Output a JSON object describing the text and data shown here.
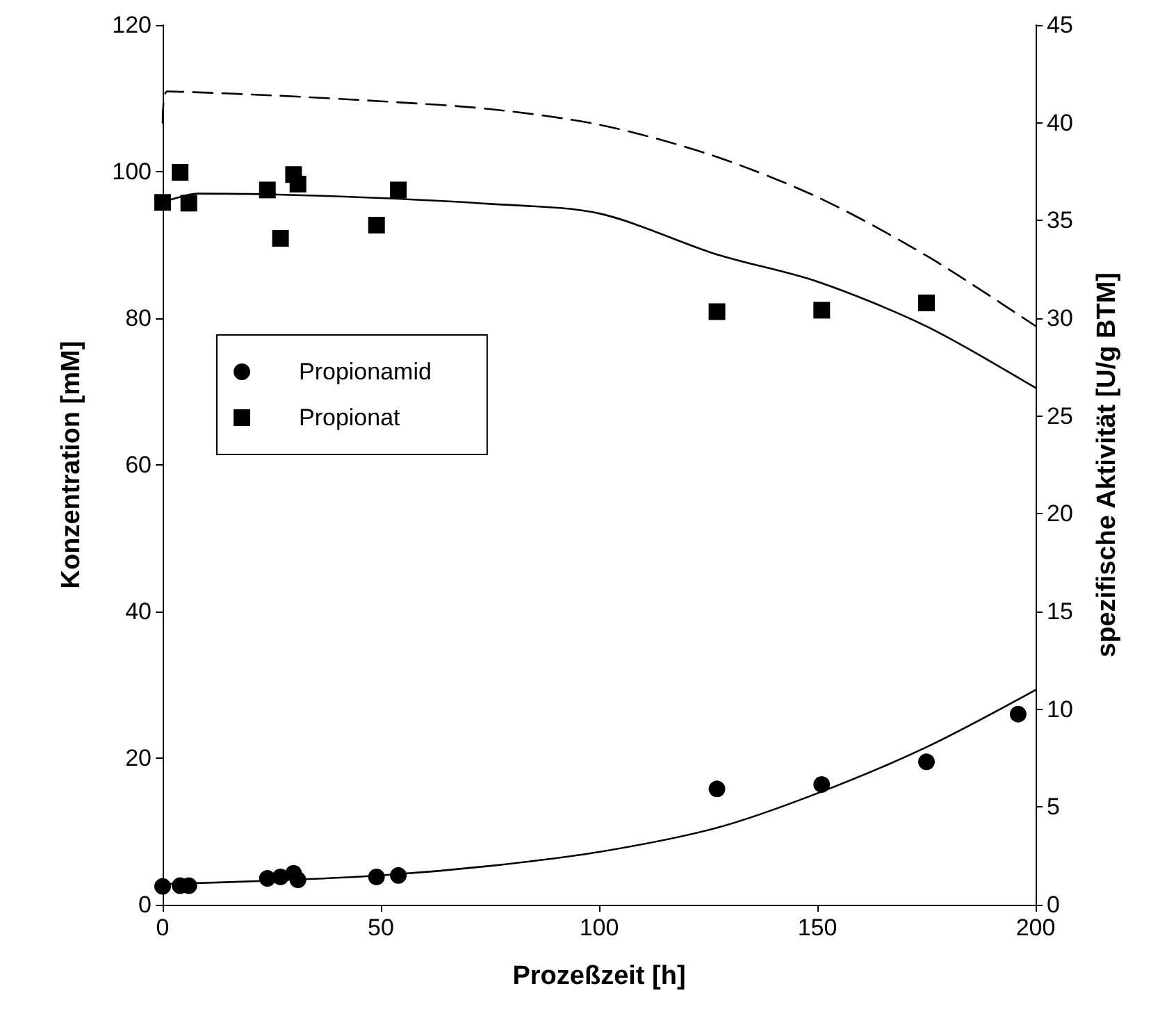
{
  "chart_data": {
    "type": "scatter",
    "xlabel": "Prozeßzeit [h]",
    "ylabel": "Konzentration [mM]",
    "y2label": "spezifische Aktivität [U/g BTM]",
    "xlim": [
      0,
      200
    ],
    "xticks": [
      0,
      50,
      100,
      150,
      200
    ],
    "ylim": [
      0,
      120
    ],
    "yticks": [
      0,
      20,
      40,
      60,
      80,
      100,
      120
    ],
    "y2lim": [
      0,
      45
    ],
    "y2ticks": [
      0,
      5,
      10,
      15,
      20,
      25,
      30,
      35,
      40,
      45
    ],
    "grid": false,
    "legend": "left",
    "series": [
      {
        "name": "Propionamid",
        "marker": "circle",
        "color": "#000000",
        "x": [
          0,
          4,
          6,
          24,
          27,
          30,
          31,
          49,
          54,
          127,
          151,
          175,
          196
        ],
        "values": [
          2.5,
          2.6,
          2.6,
          3.6,
          3.8,
          4.3,
          3.4,
          3.8,
          4.0,
          15.8,
          16.4,
          19.5,
          26.0
        ]
      },
      {
        "name": "Propionat",
        "marker": "square",
        "color": "#000000",
        "x": [
          0,
          4,
          6,
          24,
          27,
          30,
          31,
          49,
          54,
          127,
          151,
          175
        ],
        "values": [
          95.8,
          99.9,
          95.7,
          97.5,
          90.9,
          99.6,
          98.3,
          92.7,
          97.5,
          80.9,
          81.1,
          82.1
        ]
      },
      {
        "type": "line",
        "line_style": "solid",
        "color": "#000000",
        "x": [
          0,
          8,
          25,
          50,
          75,
          100,
          127,
          150,
          175,
          200
        ],
        "values": [
          95.8,
          97,
          96.9,
          96.4,
          95.6,
          94.3,
          88.7,
          85,
          78.9,
          70.5
        ]
      },
      {
        "type": "line",
        "line_style": "solid",
        "color": "#000000",
        "x": [
          0,
          25,
          50,
          75,
          100,
          127,
          150,
          175,
          200
        ],
        "values": [
          2.8,
          3.3,
          4.0,
          5.3,
          7.2,
          10.5,
          15.2,
          21.5,
          29.3
        ]
      },
      {
        "type": "line",
        "line_style": "dashed",
        "axis": "y2",
        "color": "#000000",
        "x": [
          0,
          1,
          25,
          50,
          75,
          100,
          125,
          150,
          175,
          200
        ],
        "values": [
          40,
          41.6,
          41.4,
          41.1,
          40.7,
          39.9,
          38.4,
          36.2,
          33.2,
          29.6
        ]
      }
    ]
  }
}
